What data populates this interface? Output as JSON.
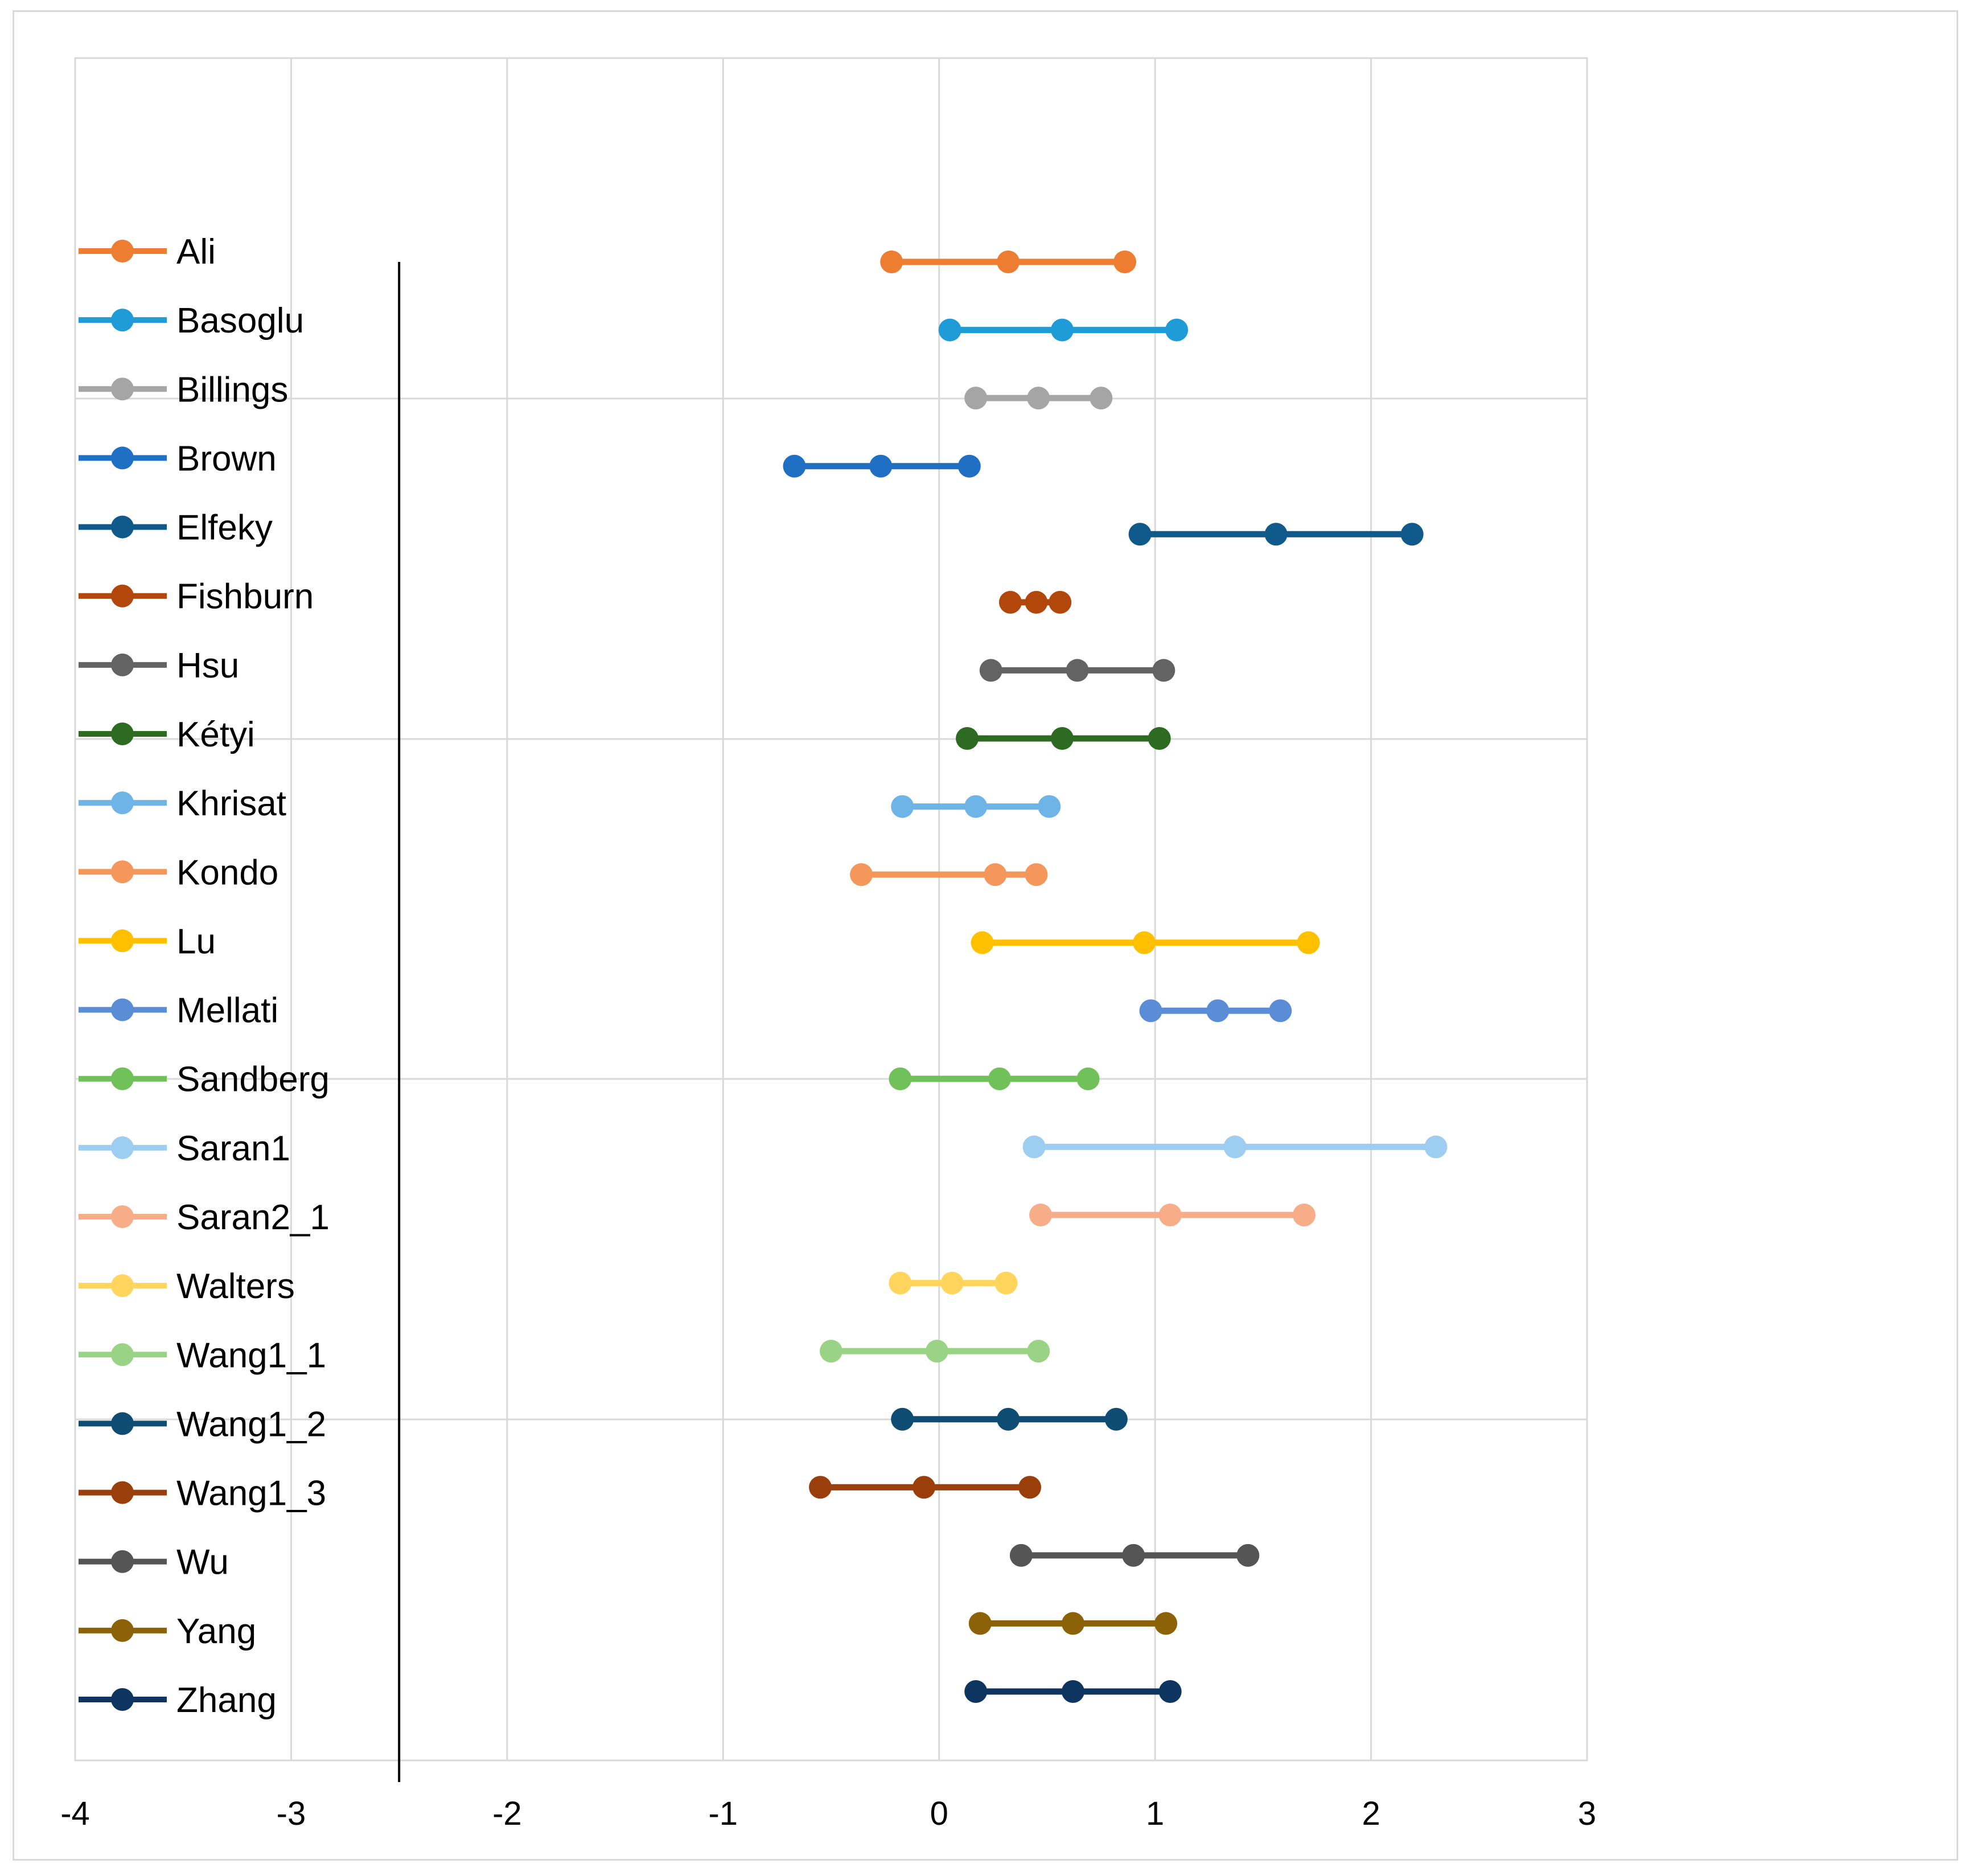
{
  "chart_data": {
    "type": "line",
    "title": "",
    "xlabel": "",
    "ylabel": "",
    "xlim": [
      -4,
      3
    ],
    "x_ticks": [
      "-4",
      "-3",
      "-2",
      "-1",
      "0",
      "1",
      "2",
      "3"
    ],
    "grid": true,
    "legend": "left",
    "reference_line_x": -2.5,
    "series": [
      {
        "name": "Ali",
        "color": "#ED7D31",
        "values": [
          -0.22,
          0.32,
          0.86
        ]
      },
      {
        "name": "Basoglu",
        "color": "#1F9BD7",
        "values": [
          0.05,
          0.57,
          1.1
        ]
      },
      {
        "name": "Billings",
        "color": "#A5A5A5",
        "values": [
          0.17,
          0.46,
          0.75
        ]
      },
      {
        "name": "Brown",
        "color": "#1F6FC5",
        "values": [
          -0.67,
          -0.27,
          0.14
        ]
      },
      {
        "name": "Elfeky",
        "color": "#0F5A8A",
        "values": [
          0.93,
          1.56,
          2.19
        ]
      },
      {
        "name": "Fishburn",
        "color": "#B1470B",
        "values": [
          0.33,
          0.45,
          0.56
        ]
      },
      {
        "name": "Hsu",
        "color": "#636363",
        "values": [
          0.24,
          0.64,
          1.04
        ]
      },
      {
        "name": "Kétyi",
        "color": "#2E6B22",
        "values": [
          0.13,
          0.57,
          1.02
        ]
      },
      {
        "name": "Khrisat",
        "color": "#6EB4E6",
        "values": [
          -0.17,
          0.17,
          0.51
        ]
      },
      {
        "name": "Kondo",
        "color": "#F5965A",
        "values": [
          -0.36,
          0.26,
          0.45
        ]
      },
      {
        "name": "Lu",
        "color": "#FFC000",
        "values": [
          0.2,
          0.95,
          1.71
        ]
      },
      {
        "name": "Mellati",
        "color": "#5B8DD6",
        "values": [
          0.98,
          1.29,
          1.58
        ]
      },
      {
        "name": "Sandberg",
        "color": "#70C15A",
        "values": [
          -0.18,
          0.28,
          0.69
        ]
      },
      {
        "name": "Saran1",
        "color": "#9DCDF0",
        "values": [
          0.44,
          1.37,
          2.3
        ]
      },
      {
        "name": "Saran2_1",
        "color": "#F7AE88",
        "values": [
          0.47,
          1.07,
          1.69
        ]
      },
      {
        "name": "Walters",
        "color": "#FFD55E",
        "values": [
          -0.18,
          0.06,
          0.31
        ]
      },
      {
        "name": "Wang1_1",
        "color": "#9AD386",
        "values": [
          -0.5,
          -0.01,
          0.46
        ]
      },
      {
        "name": "Wang1_2",
        "color": "#0E4C73",
        "values": [
          -0.17,
          0.32,
          0.82
        ]
      },
      {
        "name": "Wang1_3",
        "color": "#9A3F0C",
        "values": [
          -0.55,
          -0.07,
          0.42
        ]
      },
      {
        "name": "Wu",
        "color": "#555555",
        "values": [
          0.38,
          0.9,
          1.43
        ]
      },
      {
        "name": "Yang",
        "color": "#8B6208",
        "values": [
          0.19,
          0.62,
          1.05
        ]
      },
      {
        "name": "Zhang",
        "color": "#0D3560",
        "values": [
          0.17,
          0.62,
          1.07
        ]
      }
    ]
  }
}
